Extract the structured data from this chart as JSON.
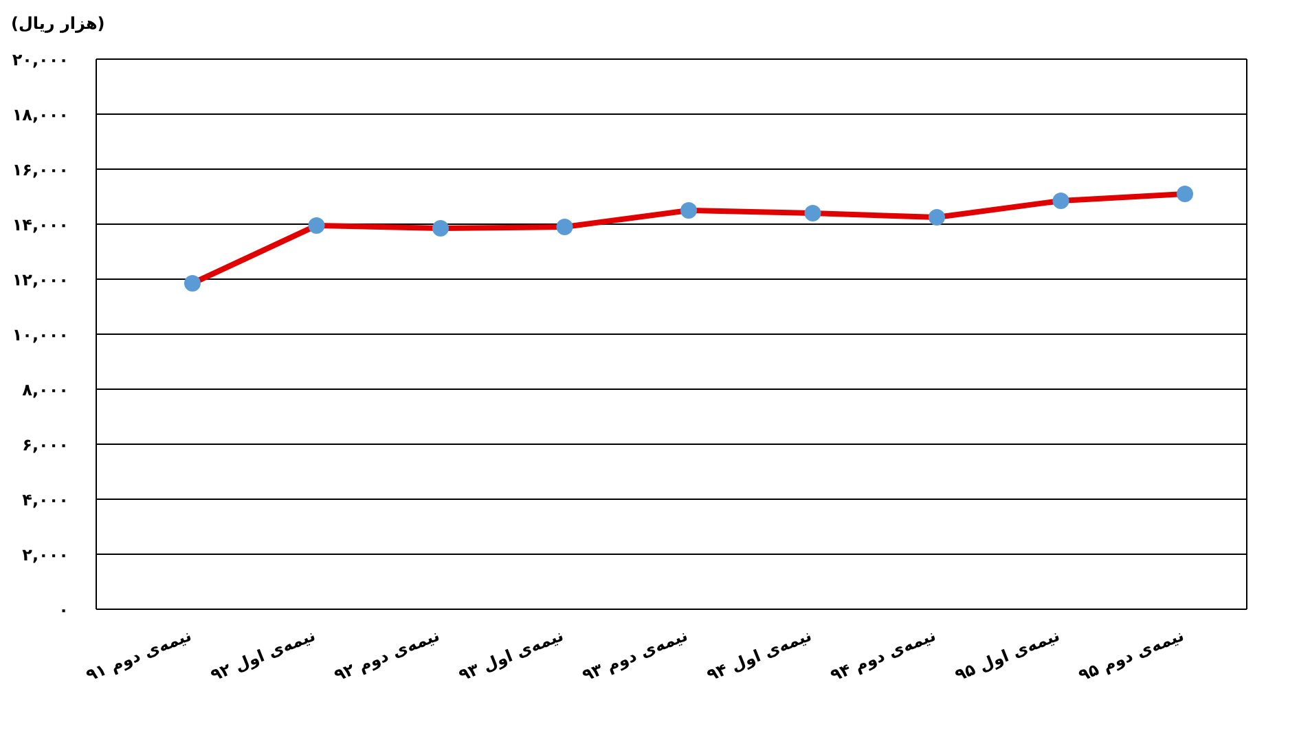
{
  "chart_data": {
    "type": "line",
    "ylabel": "(هزار ریال)",
    "categories": [
      "نیمه‌ی دوم ۹۱",
      "نیمه‌ی اول ۹۲",
      "نیمه‌ی دوم ۹۲",
      "نیمه‌ی اول ۹۳",
      "نیمه‌ی دوم ۹۳",
      "نیمه‌ی اول ۹۴",
      "نیمه‌ی دوم ۹۴",
      "نیمه‌ی اول ۹۵",
      "نیمه‌ی دوم ۹۵"
    ],
    "series": [
      {
        "color": "#e00000",
        "colors": [
          "#5b9bd5",
          "#5b9bd5",
          "#5b9bd5",
          "#5b9bd5",
          "#5b9bd5",
          "#5b9bd5",
          "#5b9bd5",
          "#5b9bd5",
          "#5b9bd5"
        ],
        "values": [
          11850,
          13950,
          13850,
          13900,
          14500,
          14400,
          14250,
          14850,
          15100
        ]
      }
    ],
    "ylim": [
      0,
      20000
    ],
    "yticks": [
      {
        "value": 0,
        "label": "۰"
      },
      {
        "value": 2000,
        "label": "۲,۰۰۰"
      },
      {
        "value": 4000,
        "label": "۴,۰۰۰"
      },
      {
        "value": 6000,
        "label": "۶,۰۰۰"
      },
      {
        "value": 8000,
        "label": "۸,۰۰۰"
      },
      {
        "value": 10000,
        "label": "۱۰,۰۰۰"
      },
      {
        "value": 12000,
        "label": "۱۲,۰۰۰"
      },
      {
        "value": 14000,
        "label": "۱۴,۰۰۰"
      },
      {
        "value": 16000,
        "label": "۱۶,۰۰۰"
      },
      {
        "value": 18000,
        "label": "۱۸,۰۰۰"
      },
      {
        "value": 20000,
        "label": "۲۰,۰۰۰"
      }
    ],
    "grid": "y",
    "marker": "circle",
    "line_style": "solid"
  }
}
